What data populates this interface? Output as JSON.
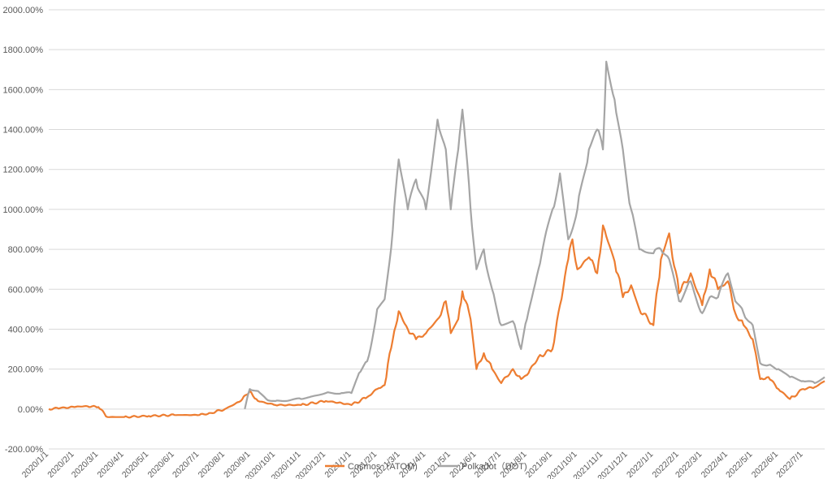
{
  "chart_data": {
    "type": "line",
    "title": "",
    "xlabel": "",
    "ylabel": "",
    "ylim": [
      -200,
      2000
    ],
    "y_ticks": [
      "2000.00%",
      "1800.00%",
      "1600.00%",
      "1400.00%",
      "1200.00%",
      "1000.00%",
      "800.00%",
      "600.00%",
      "400.00%",
      "200.00%",
      "0.00%",
      "-200.00%"
    ],
    "x_ticks": [
      "2020/1/1",
      "2020/2/1",
      "2020/3/1",
      "2020/4/1",
      "2020/5/1",
      "2020/6/1",
      "2020/7/1",
      "2020/8/1",
      "2020/9/1",
      "2020/10/1",
      "2020/11/1",
      "2020/12/1",
      "2021/1/1",
      "2021/2/1",
      "2021/3/1",
      "2021/4/1",
      "2021/5/1",
      "2021/6/1",
      "2021/7/1",
      "2021/8/1",
      "2021/9/1",
      "2021/10/1",
      "2021/11/1",
      "2021/12/1",
      "2022/1/1",
      "2022/2/1",
      "2022/3/1",
      "2022/4/1",
      "2022/5/1",
      "2022/6/1",
      "2022/7/1"
    ],
    "x_range": [
      "2020/1/1",
      "2022/7/27"
    ],
    "grid": true,
    "legend_position": "bottom",
    "series": [
      {
        "name": "Cosmos（ATOM)",
        "color": "#ED7D31",
        "points": [
          [
            "2020/1/1",
            0
          ],
          [
            "2020/1/15",
            5
          ],
          [
            "2020/2/1",
            10
          ],
          [
            "2020/2/15",
            15
          ],
          [
            "2020/3/1",
            10
          ],
          [
            "2020/3/12",
            -40
          ],
          [
            "2020/4/1",
            -40
          ],
          [
            "2020/5/1",
            -35
          ],
          [
            "2020/6/1",
            -30
          ],
          [
            "2020/7/1",
            -30
          ],
          [
            "2020/7/15",
            -20
          ],
          [
            "2020/8/1",
            0
          ],
          [
            "2020/8/20",
            40
          ],
          [
            "2020/8/31",
            90
          ],
          [
            "2020/9/10",
            40
          ],
          [
            "2020/10/1",
            20
          ],
          [
            "2020/11/1",
            20
          ],
          [
            "2020/12/1",
            40
          ],
          [
            "2020/12/20",
            30
          ],
          [
            "2021/1/1",
            20
          ],
          [
            "2021/1/20",
            60
          ],
          [
            "2021/2/1",
            100
          ],
          [
            "2021/2/10",
            120
          ],
          [
            "2021/2/20",
            350
          ],
          [
            "2021/2/27",
            490
          ],
          [
            "2021/3/10",
            400
          ],
          [
            "2021/3/20",
            350
          ],
          [
            "2021/4/1",
            380
          ],
          [
            "2021/4/15",
            450
          ],
          [
            "2021/4/25",
            540
          ],
          [
            "2021/5/1",
            380
          ],
          [
            "2021/5/10",
            450
          ],
          [
            "2021/5/15",
            590
          ],
          [
            "2021/5/25",
            450
          ],
          [
            "2021/6/1",
            200
          ],
          [
            "2021/6/10",
            280
          ],
          [
            "2021/6/20",
            200
          ],
          [
            "2021/7/1",
            130
          ],
          [
            "2021/7/15",
            200
          ],
          [
            "2021/7/25",
            150
          ],
          [
            "2021/8/1",
            170
          ],
          [
            "2021/8/15",
            260
          ],
          [
            "2021/9/1",
            300
          ],
          [
            "2021/9/10",
            520
          ],
          [
            "2021/9/20",
            750
          ],
          [
            "2021/9/25",
            850
          ],
          [
            "2021/10/1",
            700
          ],
          [
            "2021/10/15",
            760
          ],
          [
            "2021/10/25",
            680
          ],
          [
            "2021/11/1",
            920
          ],
          [
            "2021/11/15",
            740
          ],
          [
            "2021/11/25",
            560
          ],
          [
            "2021/12/5",
            620
          ],
          [
            "2021/12/15",
            500
          ],
          [
            "2022/1/1",
            420
          ],
          [
            "2022/1/10",
            750
          ],
          [
            "2022/1/20",
            880
          ],
          [
            "2022/2/1",
            580
          ],
          [
            "2022/2/15",
            680
          ],
          [
            "2022/3/1",
            520
          ],
          [
            "2022/3/10",
            700
          ],
          [
            "2022/3/20",
            600
          ],
          [
            "2022/4/1",
            640
          ],
          [
            "2022/4/10",
            480
          ],
          [
            "2022/4/20",
            420
          ],
          [
            "2022/5/1",
            350
          ],
          [
            "2022/5/10",
            150
          ],
          [
            "2022/5/20",
            160
          ],
          [
            "2022/6/1",
            100
          ],
          [
            "2022/6/15",
            50
          ],
          [
            "2022/7/1",
            100
          ],
          [
            "2022/7/15",
            110
          ],
          [
            "2022/7/27",
            140
          ]
        ]
      },
      {
        "name": "Polkadot（DOT)",
        "color": "#A5A5A5",
        "points": [
          [
            "2020/8/25",
            0
          ],
          [
            "2020/8/31",
            100
          ],
          [
            "2020/9/10",
            90
          ],
          [
            "2020/9/20",
            50
          ],
          [
            "2020/10/1",
            40
          ],
          [
            "2020/11/1",
            50
          ],
          [
            "2020/12/1",
            80
          ],
          [
            "2020/12/20",
            80
          ],
          [
            "2021/1/1",
            80
          ],
          [
            "2021/1/10",
            180
          ],
          [
            "2021/1/20",
            240
          ],
          [
            "2021/2/1",
            500
          ],
          [
            "2021/2/10",
            550
          ],
          [
            "2021/2/20",
            900
          ],
          [
            "2021/2/27",
            1250
          ],
          [
            "2021/3/10",
            1000
          ],
          [
            "2021/3/20",
            1150
          ],
          [
            "2021/4/1",
            1000
          ],
          [
            "2021/4/15",
            1450
          ],
          [
            "2021/4/25",
            1300
          ],
          [
            "2021/5/1",
            1000
          ],
          [
            "2021/5/10",
            1300
          ],
          [
            "2021/5/15",
            1500
          ],
          [
            "2021/5/25",
            1000
          ],
          [
            "2021/6/1",
            700
          ],
          [
            "2021/6/10",
            800
          ],
          [
            "2021/6/20",
            600
          ],
          [
            "2021/7/1",
            420
          ],
          [
            "2021/7/15",
            440
          ],
          [
            "2021/7/25",
            300
          ],
          [
            "2021/8/1",
            450
          ],
          [
            "2021/8/15",
            700
          ],
          [
            "2021/9/1",
            1000
          ],
          [
            "2021/9/10",
            1180
          ],
          [
            "2021/9/20",
            850
          ],
          [
            "2021/10/1",
            1000
          ],
          [
            "2021/10/15",
            1300
          ],
          [
            "2021/10/25",
            1400
          ],
          [
            "2021/11/1",
            1300
          ],
          [
            "2021/11/5",
            1740
          ],
          [
            "2021/11/15",
            1550
          ],
          [
            "2021/11/25",
            1300
          ],
          [
            "2021/12/5",
            1000
          ],
          [
            "2021/12/15",
            800
          ],
          [
            "2022/1/1",
            780
          ],
          [
            "2022/1/10",
            800
          ],
          [
            "2022/1/20",
            750
          ],
          [
            "2022/2/1",
            540
          ],
          [
            "2022/2/15",
            640
          ],
          [
            "2022/3/1",
            480
          ],
          [
            "2022/3/10",
            560
          ],
          [
            "2022/3/20",
            560
          ],
          [
            "2022/4/1",
            680
          ],
          [
            "2022/4/10",
            540
          ],
          [
            "2022/4/20",
            480
          ],
          [
            "2022/5/1",
            420
          ],
          [
            "2022/5/10",
            230
          ],
          [
            "2022/5/20",
            220
          ],
          [
            "2022/6/1",
            200
          ],
          [
            "2022/6/15",
            160
          ],
          [
            "2022/7/1",
            140
          ],
          [
            "2022/7/15",
            130
          ],
          [
            "2022/7/27",
            160
          ]
        ]
      }
    ]
  }
}
